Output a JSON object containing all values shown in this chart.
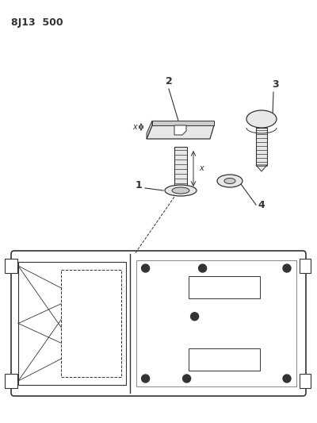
{
  "title": "8J13  500",
  "bg_color": "#ffffff",
  "line_color": "#333333",
  "gray_fill": "#cccccc",
  "light_gray": "#e8e8e8"
}
